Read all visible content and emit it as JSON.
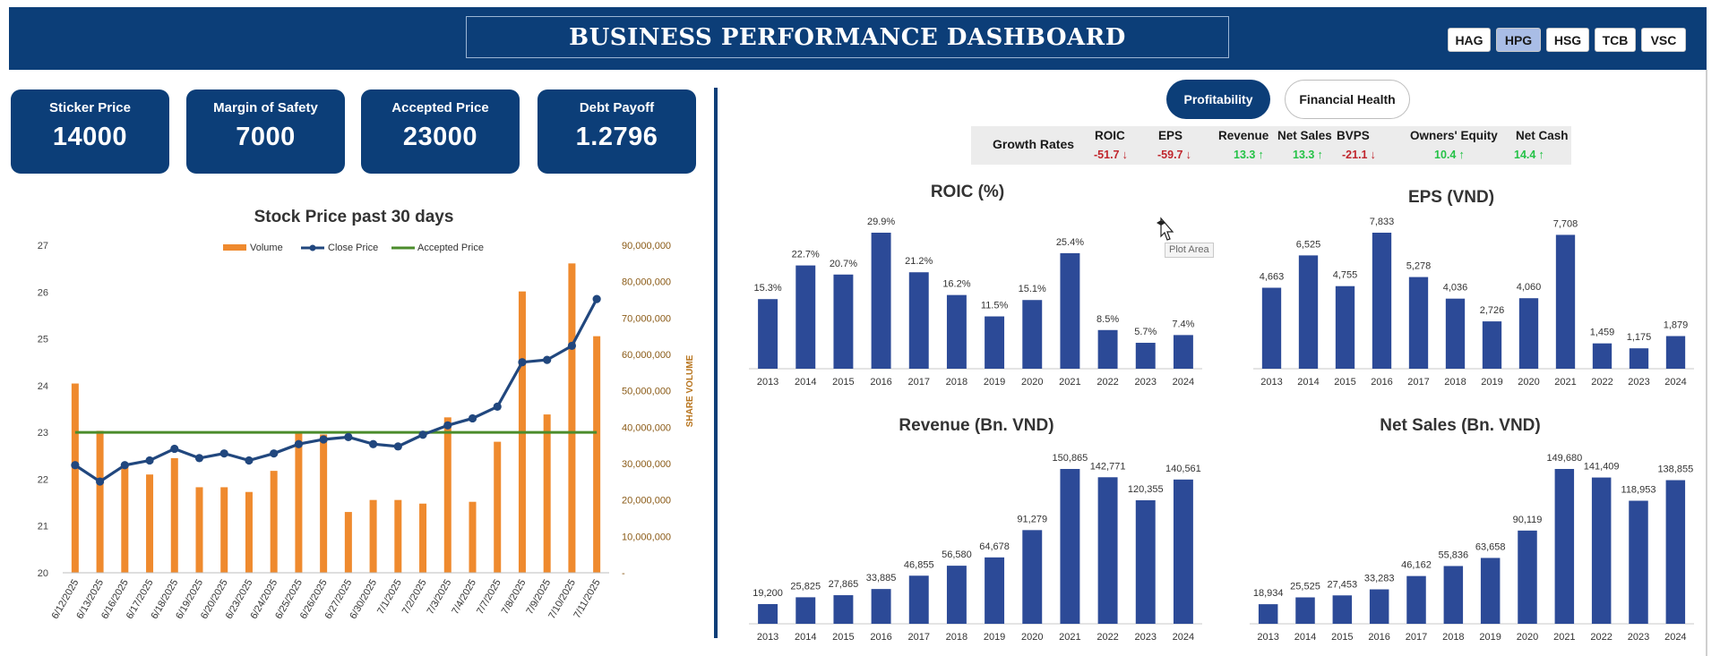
{
  "header": {
    "title": "BUSINESS PERFORMANCE DASHBOARD",
    "tickers": [
      "HAG",
      "HPG",
      "HSG",
      "TCB",
      "VSC"
    ],
    "active_ticker": "HPG"
  },
  "kpis": [
    {
      "label": "Sticker Price",
      "value": "14000"
    },
    {
      "label": "Margin of Safety",
      "value": "7000"
    },
    {
      "label": "Accepted Price",
      "value": "23000"
    },
    {
      "label": "Debt Payoff",
      "value": "1.2796"
    }
  ],
  "toggles": {
    "profitability": "Profitability",
    "financial_health": "Financial Health"
  },
  "growth_rates": {
    "label": "Growth Rates",
    "items": [
      {
        "name": "ROIC",
        "value": "-51.7",
        "direction": "down"
      },
      {
        "name": "EPS",
        "value": "-59.7",
        "direction": "down"
      },
      {
        "name": "Revenue",
        "value": "13.3",
        "direction": "up"
      },
      {
        "name": "Net Sales",
        "value": "13.3",
        "direction": "up"
      },
      {
        "name": "BVPS",
        "value": "-21.1",
        "direction": "down"
      },
      {
        "name": "Owners' Equity",
        "value": "10.4",
        "direction": "up"
      },
      {
        "name": "Net Cash",
        "value": "14.4",
        "direction": "up"
      }
    ]
  },
  "tooltip": {
    "text": "Plot Area"
  },
  "colors": {
    "navy": "#0c3e78",
    "bar": "#2c4a97",
    "orange": "#ef8a2e",
    "line": "#21477e",
    "green": "#4b8c2b",
    "neg": "#c0262d",
    "pos": "#25c247"
  },
  "chart_data": [
    {
      "type": "bar+line",
      "title": "Stock Price past 30 days",
      "categories": [
        "6/12/2025",
        "6/13/2025",
        "6/16/2025",
        "6/17/2025",
        "6/18/2025",
        "6/19/2025",
        "6/20/2025",
        "6/23/2025",
        "6/24/2025",
        "6/25/2025",
        "6/26/2025",
        "6/27/2025",
        "6/30/2025",
        "7/1/2025",
        "7/2/2025",
        "7/3/2025",
        "7/4/2025",
        "7/7/2025",
        "7/8/2025",
        "7/9/2025",
        "7/10/2025",
        "7/11/2025"
      ],
      "series": [
        {
          "name": "Volume",
          "type": "bar",
          "axis": "right",
          "values": [
            52000000,
            39000000,
            29000000,
            27000000,
            31500000,
            23500000,
            23500000,
            22200000,
            28000000,
            38500000,
            38000000,
            16700000,
            20000000,
            20000000,
            19000000,
            42700000,
            19500000,
            36000000,
            77300000,
            43500000,
            85000000,
            65000000
          ]
        },
        {
          "name": "Close Price",
          "type": "line",
          "axis": "left",
          "values": [
            22.3,
            21.95,
            22.3,
            22.4,
            22.65,
            22.45,
            22.55,
            22.4,
            22.55,
            22.75,
            22.85,
            22.9,
            22.75,
            22.7,
            22.95,
            23.15,
            23.3,
            23.55,
            24.5,
            24.55,
            24.85,
            25.85
          ]
        },
        {
          "name": "Accepted Price",
          "type": "line",
          "axis": "left",
          "values": [
            23,
            23,
            23,
            23,
            23,
            23,
            23,
            23,
            23,
            23,
            23,
            23,
            23,
            23,
            23,
            23,
            23,
            23,
            23,
            23,
            23,
            23
          ]
        }
      ],
      "y_left": {
        "min": 20,
        "max": 27,
        "ticks": [
          "20",
          "21",
          "22",
          "23",
          "24",
          "25",
          "26",
          "27"
        ]
      },
      "y_right": {
        "label": "SHARE VOLUME",
        "min": 0,
        "max": 90000000,
        "ticks": [
          "-",
          "10,000,000",
          "20,000,000",
          "30,000,000",
          "40,000,000",
          "50,000,000",
          "60,000,000",
          "70,000,000",
          "80,000,000",
          "90,000,000"
        ]
      },
      "legend": "top"
    },
    {
      "type": "bar",
      "title": "ROIC (%)",
      "categories": [
        "2013",
        "2014",
        "2015",
        "2016",
        "2017",
        "2018",
        "2019",
        "2020",
        "2021",
        "2022",
        "2023",
        "2024"
      ],
      "values": [
        15.3,
        22.7,
        20.7,
        29.9,
        21.2,
        16.2,
        11.5,
        15.1,
        25.4,
        8.5,
        5.7,
        7.4
      ],
      "labels": [
        "15.3%",
        "22.7%",
        "20.7%",
        "29.9%",
        "21.2%",
        "16.2%",
        "11.5%",
        "15.1%",
        "25.4%",
        "8.5%",
        "5.7%",
        "7.4%"
      ]
    },
    {
      "type": "bar",
      "title": "EPS (VND)",
      "categories": [
        "2013",
        "2014",
        "2015",
        "2016",
        "2017",
        "2018",
        "2019",
        "2020",
        "2021",
        "2022",
        "2023",
        "2024"
      ],
      "values": [
        4663,
        6525,
        4755,
        7833,
        5278,
        4036,
        2726,
        4060,
        7708,
        1459,
        1175,
        1879
      ],
      "labels": [
        "4,663",
        "6,525",
        "4,755",
        "7,833",
        "5,278",
        "4,036",
        "2,726",
        "4,060",
        "7,708",
        "1,459",
        "1,175",
        "1,879"
      ]
    },
    {
      "type": "bar",
      "title": "Revenue (Bn. VND)",
      "categories": [
        "2013",
        "2014",
        "2015",
        "2016",
        "2017",
        "2018",
        "2019",
        "2020",
        "2021",
        "2022",
        "2023",
        "2024"
      ],
      "values": [
        19200,
        25825,
        27865,
        33885,
        46855,
        56580,
        64678,
        91279,
        150865,
        142771,
        120355,
        140561
      ],
      "labels": [
        "19,200",
        "25,825",
        "27,865",
        "33,885",
        "46,855",
        "56,580",
        "64,678",
        "91,279",
        "150,865",
        "142,771",
        "120,355",
        "140,561"
      ]
    },
    {
      "type": "bar",
      "title": "Net Sales (Bn. VND)",
      "categories": [
        "2013",
        "2014",
        "2015",
        "2016",
        "2017",
        "2018",
        "2019",
        "2020",
        "2021",
        "2022",
        "2023",
        "2024"
      ],
      "values": [
        18934,
        25525,
        27453,
        33283,
        46162,
        55836,
        63658,
        90119,
        149680,
        141409,
        118953,
        138855
      ],
      "labels": [
        "18,934",
        "25,525",
        "27,453",
        "33,283",
        "46,162",
        "55,836",
        "63,658",
        "90,119",
        "149,680",
        "141,409",
        "118,953",
        "138,855"
      ]
    }
  ]
}
